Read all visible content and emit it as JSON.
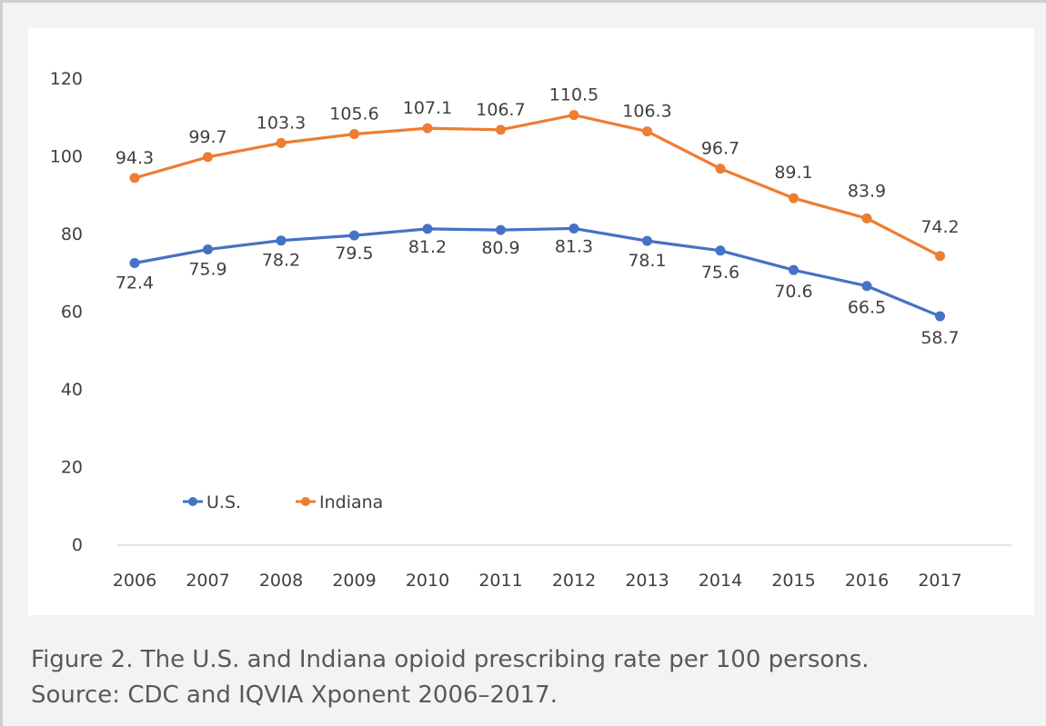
{
  "caption": {
    "line1": "Figure 2. The U.S. and Indiana opioid prescribing rate per 100 persons.",
    "line2": "Source: CDC and IQVIA Xponent 2006–2017."
  },
  "chart_data": {
    "type": "line",
    "title": "",
    "xlabel": "",
    "ylabel": "",
    "categories": [
      "2006",
      "2007",
      "2008",
      "2009",
      "2010",
      "2011",
      "2012",
      "2013",
      "2014",
      "2015",
      "2016",
      "2017"
    ],
    "series": [
      {
        "name": "U.S.",
        "color": "#4472c4",
        "values": [
          72.4,
          75.9,
          78.2,
          79.5,
          81.2,
          80.9,
          81.3,
          78.1,
          75.6,
          70.6,
          66.5,
          58.7
        ],
        "labels": [
          "72.4",
          "75.9",
          "78.2",
          "79.5",
          "81.2",
          "80.9",
          "81.3",
          "78.1",
          "75.6",
          "70.6",
          "66.5",
          "58.7"
        ]
      },
      {
        "name": "Indiana",
        "color": "#ed7d31",
        "values": [
          94.3,
          99.7,
          103.3,
          105.6,
          107.1,
          106.7,
          110.5,
          106.3,
          96.7,
          89.1,
          83.9,
          74.2
        ],
        "labels": [
          "94.3",
          "99.7",
          "103.3",
          "105.6",
          "107.1",
          "106.7",
          "110.5",
          "106.3",
          "96.7",
          "89.1",
          "83.9",
          "74.2"
        ]
      }
    ],
    "ylim": [
      0,
      120
    ],
    "yticks": [
      "0",
      "20",
      "40",
      "60",
      "80",
      "100",
      "120"
    ],
    "grid": false,
    "legend": "bottom-left"
  }
}
